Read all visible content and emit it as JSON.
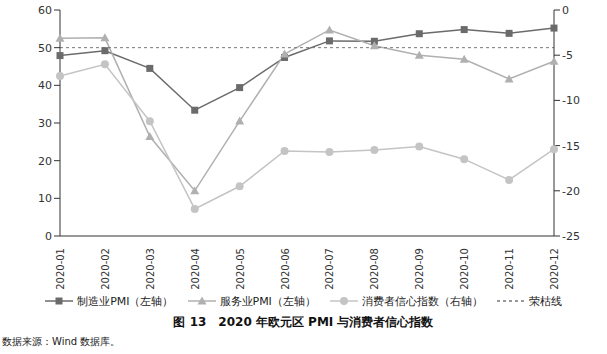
{
  "chart_data": {
    "type": "line",
    "title": "图 13　2020 年欧元区 PMI 与消费者信心指数",
    "source": "数据来源：Wind 数据库。",
    "categories": [
      "2020-01",
      "2020-02",
      "2020-03",
      "2020-04",
      "2020-05",
      "2020-06",
      "2020-07",
      "2020-08",
      "2020-09",
      "2020-10",
      "2020-11",
      "2020-12"
    ],
    "ylim": [
      0,
      60
    ],
    "yticks": [
      0,
      10,
      20,
      30,
      40,
      50,
      60
    ],
    "y2lim": [
      -25,
      0
    ],
    "y2ticks": [
      -25,
      -20,
      -15,
      -10,
      -5,
      0
    ],
    "legend": "bottom",
    "series": [
      {
        "name": "制造业PMI（左轴）",
        "color": "#6b6b6b",
        "marker": "square",
        "line_style": "solid",
        "values": [
          47.9,
          49.2,
          44.5,
          33.4,
          39.4,
          47.4,
          51.8,
          51.7,
          53.7,
          54.8,
          53.8,
          55.2
        ]
      },
      {
        "name": "服务业PMI（左轴）",
        "color": "#b0b0b0",
        "marker": "triangle",
        "line_style": "solid",
        "values": [
          52.5,
          52.6,
          26.4,
          12.0,
          30.5,
          48.3,
          54.7,
          50.5,
          48.0,
          46.9,
          41.7,
          46.4
        ]
      },
      {
        "name": "消费者信心指数（右轴）",
        "color": "#c4c4c4",
        "marker": "circle",
        "line_style": "solid",
        "axis": "y2",
        "values": [
          -7.3,
          -6.0,
          -12.3,
          -22.0,
          -19.5,
          -15.6,
          -15.7,
          -15.5,
          -15.1,
          -16.5,
          -18.8,
          -15.4
        ]
      },
      {
        "name": "荣枯线",
        "color": "#777777",
        "marker": "none",
        "line_style": "dashed",
        "values": [
          50,
          50,
          50,
          50,
          50,
          50,
          50,
          50,
          50,
          50,
          50,
          50
        ]
      }
    ]
  }
}
